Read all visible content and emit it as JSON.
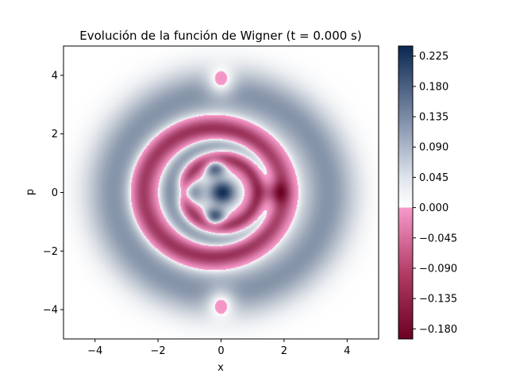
{
  "chart_data": {
    "type": "heatmap",
    "title": "Evolución de la función de Wigner (t = 0.000 s)",
    "xlabel": "x",
    "ylabel": "p",
    "xlim": [
      -5,
      5
    ],
    "ylim": [
      -5,
      5
    ],
    "x_ticks": [
      -4,
      -2,
      0,
      2,
      4
    ],
    "y_ticks": [
      -4,
      -2,
      0,
      2,
      4
    ],
    "x_tick_labels": [
      "−4",
      "−2",
      "0",
      "2",
      "4"
    ],
    "y_tick_labels": [
      "−4",
      "−2",
      "0",
      "2",
      "4"
    ],
    "grid": false,
    "colorbar": {
      "range": [
        -0.195,
        0.24
      ],
      "ticks": [
        0.225,
        0.18,
        0.135,
        0.09,
        0.045,
        0.0,
        -0.045,
        -0.09,
        -0.135,
        -0.18
      ],
      "tick_labels": [
        "0.225",
        "0.180",
        "0.135",
        "0.090",
        "0.045",
        "0.000",
        "−0.045",
        "−0.090",
        "−0.135",
        "−0.180"
      ],
      "positive_colors": [
        "#ffffff",
        "#0b2852"
      ],
      "negative_colors": [
        "#f79acb",
        "#6b0022"
      ]
    },
    "field": {
      "description_terms": [
        {
          "sign": "+",
          "center": [
            0,
            0
          ],
          "amplitude": 0.1,
          "shape": "ring",
          "radius": 3.4,
          "width": 0.55
        },
        {
          "sign": "-",
          "center": [
            -0.3,
            0
          ],
          "amplitude": 0.15,
          "shape": "ring",
          "radius": 2.2,
          "width": 0.28
        },
        {
          "sign": "+",
          "center": [
            0,
            0
          ],
          "amplitude": 0.09,
          "shape": "ring",
          "radius": 1.65,
          "width": 0.22
        },
        {
          "sign": "-",
          "center": [
            0,
            0
          ],
          "amplitude": 0.14,
          "shape": "ring",
          "radius": 1.15,
          "width": 0.18
        },
        {
          "sign": "+",
          "center": [
            0.05,
            0
          ],
          "amplitude": 0.23,
          "shape": "blob",
          "radius": 0.28
        },
        {
          "sign": "+",
          "center": [
            -1.0,
            0
          ],
          "amplitude": 0.14,
          "shape": "blob",
          "radius": 0.3
        },
        {
          "sign": "+",
          "center": [
            -0.2,
            0.85
          ],
          "amplitude": 0.18,
          "shape": "blob",
          "radius": 0.22
        },
        {
          "sign": "+",
          "center": [
            -0.2,
            -0.85
          ],
          "amplitude": 0.2,
          "shape": "blob",
          "radius": 0.22
        },
        {
          "sign": "-",
          "center": [
            1.7,
            0
          ],
          "amplitude": 0.12,
          "shape": "blob",
          "radius": 0.28
        },
        {
          "sign": "-",
          "center": [
            0,
            3.7
          ],
          "amplitude": 0.09,
          "shape": "blob",
          "radius": 0.35
        },
        {
          "sign": "-",
          "center": [
            0,
            -3.7
          ],
          "amplitude": 0.09,
          "shape": "blob",
          "radius": 0.35
        }
      ]
    }
  }
}
